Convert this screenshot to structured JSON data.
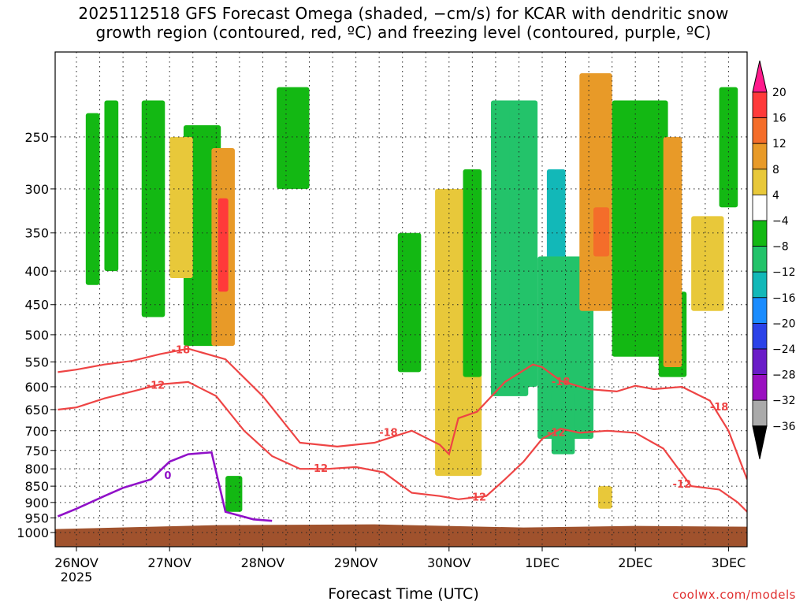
{
  "header": {
    "title_line1": "2025112518 GFS Forecast Omega (shaded, −cm/s) for KCAR with dendritic snow",
    "title_line2": "growth region (contoured, red, ºC) and freezing level (contoured, purple, ºC)"
  },
  "footer": {
    "xlabel": "Forecast Time (UTC)",
    "credit": "coolwx.com/models"
  },
  "chart_data": {
    "type": "heatmap",
    "title": "2025112518 GFS Forecast Omega (shaded, −cm/s) for KCAR with dendritic snow growth region (contoured, red, ºC) and freezing level (contoured, purple, ºC)",
    "xlabel": "Forecast Time (UTC)",
    "ylabel": "",
    "x_ticks": [
      "26NOV",
      "27NOV",
      "28NOV",
      "29NOV",
      "30NOV",
      "1DEC",
      "2DEC",
      "3DEC"
    ],
    "x_year_label": "2025",
    "y_ticks": [
      "250",
      "300",
      "350",
      "400",
      "450",
      "500",
      "550",
      "600",
      "650",
      "700",
      "750",
      "800",
      "850",
      "900",
      "950",
      "1000"
    ],
    "y_range": [
      200,
      1000
    ],
    "x_range_days": [
      -0.2,
      7.25
    ],
    "grid": true,
    "colorbar": {
      "labels": [
        "20",
        "16",
        "12",
        "8",
        "4",
        "−4",
        "−8",
        "−12",
        "−16",
        "−20",
        "−24",
        "−28",
        "−32",
        "−36"
      ],
      "colors": [
        "#ff3a3a",
        "#f46d2a",
        "#e89a28",
        "#e8c83a",
        "#ffffff",
        "#13b813",
        "#23c36a",
        "#12b8b8",
        "#1a8cff",
        "#2b42e8",
        "#6a1cc8",
        "#9a10c0",
        "#aaaaaa"
      ],
      "top_color": "#ff1a8c",
      "bottom_color": "#000000"
    },
    "contour_labels": {
      "dgz": [
        "-18",
        "-12"
      ],
      "freezing": [
        "0"
      ]
    },
    "dgz_contour_minus18": {
      "t": [
        -0.2,
        0.0,
        0.3,
        0.6,
        0.9,
        1.2,
        1.6,
        2.0,
        2.4,
        2.8,
        3.2,
        3.6,
        3.9,
        4.0,
        4.1,
        4.3,
        4.6,
        4.9,
        5.0,
        5.2,
        5.5,
        5.8,
        6.0,
        6.2,
        6.5,
        6.8,
        7.0,
        7.2
      ],
      "p": [
        570,
        565,
        555,
        548,
        535,
        525,
        545,
        620,
        730,
        740,
        730,
        700,
        735,
        760,
        670,
        655,
        590,
        555,
        560,
        588,
        605,
        610,
        598,
        605,
        600,
        630,
        700,
        830
      ]
    },
    "dgz_contour_minus12": {
      "t": [
        -0.2,
        0.0,
        0.3,
        0.6,
        0.9,
        1.2,
        1.5,
        1.8,
        2.1,
        2.4,
        2.7,
        3.0,
        3.3,
        3.6,
        3.9,
        4.1,
        4.4,
        4.6,
        4.8,
        5.0,
        5.2,
        5.4,
        5.7,
        6.0,
        6.3,
        6.6,
        6.9,
        7.1,
        7.25
      ],
      "p": [
        650,
        645,
        625,
        610,
        595,
        590,
        620,
        700,
        765,
        800,
        800,
        795,
        810,
        870,
        880,
        890,
        880,
        830,
        780,
        720,
        695,
        705,
        700,
        705,
        745,
        850,
        860,
        900,
        945
      ]
    },
    "freezing_contour_0": {
      "t": [
        -0.2,
        0.0,
        0.3,
        0.5,
        0.8,
        1.0,
        1.2,
        1.45,
        1.6,
        1.9,
        2.1
      ],
      "p": [
        945,
        920,
        880,
        855,
        830,
        780,
        760,
        755,
        930,
        955,
        960
      ]
    },
    "omega_regions": [
      {
        "t0": 0.1,
        "t1": 0.25,
        "p0": 230,
        "p1": 420,
        "value": -6
      },
      {
        "t0": 0.3,
        "t1": 0.45,
        "p0": 220,
        "p1": 400,
        "value": -5
      },
      {
        "t0": 0.7,
        "t1": 0.95,
        "p0": 220,
        "p1": 470,
        "value": -5
      },
      {
        "t0": 1.15,
        "t1": 1.55,
        "p0": 240,
        "p1": 520,
        "value": -6
      },
      {
        "t0": 1.0,
        "t1": 1.25,
        "p0": 250,
        "p1": 410,
        "value": 6
      },
      {
        "t0": 1.45,
        "t1": 1.7,
        "p0": 260,
        "p1": 520,
        "value": 8
      },
      {
        "t0": 1.52,
        "t1": 1.63,
        "p0": 310,
        "p1": 430,
        "value": 18
      },
      {
        "t0": 1.6,
        "t1": 1.78,
        "p0": 820,
        "p1": 930,
        "value": -6
      },
      {
        "t0": 2.15,
        "t1": 2.5,
        "p0": 210,
        "p1": 300,
        "value": -6
      },
      {
        "t0": 3.45,
        "t1": 3.7,
        "p0": 350,
        "p1": 570,
        "value": -6
      },
      {
        "t0": 3.85,
        "t1": 4.35,
        "p0": 300,
        "p1": 820,
        "value": 5
      },
      {
        "t0": 4.15,
        "t1": 4.35,
        "p0": 280,
        "p1": 580,
        "value": -6
      },
      {
        "t0": 4.45,
        "t1": 4.85,
        "p0": 220,
        "p1": 620,
        "value": -8
      },
      {
        "t0": 4.65,
        "t1": 4.95,
        "p0": 220,
        "p1": 600,
        "value": -10
      },
      {
        "t0": 5.05,
        "t1": 5.25,
        "p0": 280,
        "p1": 470,
        "value": -14
      },
      {
        "t0": 4.95,
        "t1": 5.55,
        "p0": 380,
        "p1": 720,
        "value": -8
      },
      {
        "t0": 5.4,
        "t1": 5.75,
        "p0": 200,
        "p1": 460,
        "value": 9
      },
      {
        "t0": 5.55,
        "t1": 5.72,
        "p0": 320,
        "p1": 380,
        "value": 14
      },
      {
        "t0": 5.75,
        "t1": 6.35,
        "p0": 220,
        "p1": 540,
        "value": -6
      },
      {
        "t0": 6.25,
        "t1": 6.55,
        "p0": 430,
        "p1": 580,
        "value": -6
      },
      {
        "t0": 6.3,
        "t1": 6.5,
        "p0": 250,
        "p1": 560,
        "value": 10
      },
      {
        "t0": 6.6,
        "t1": 6.95,
        "p0": 330,
        "p1": 460,
        "value": 6
      },
      {
        "t0": 6.9,
        "t1": 7.1,
        "p0": 210,
        "p1": 320,
        "value": -6
      },
      {
        "t0": 5.1,
        "t1": 5.35,
        "p0": 610,
        "p1": 760,
        "value": -8
      },
      {
        "t0": 5.6,
        "t1": 5.75,
        "p0": 850,
        "p1": 920,
        "value": 5
      }
    ],
    "colors": {
      "dgz_contour": "#ee4444",
      "freezing_contour": "#9010c8",
      "terrain": "#a0522d"
    }
  }
}
